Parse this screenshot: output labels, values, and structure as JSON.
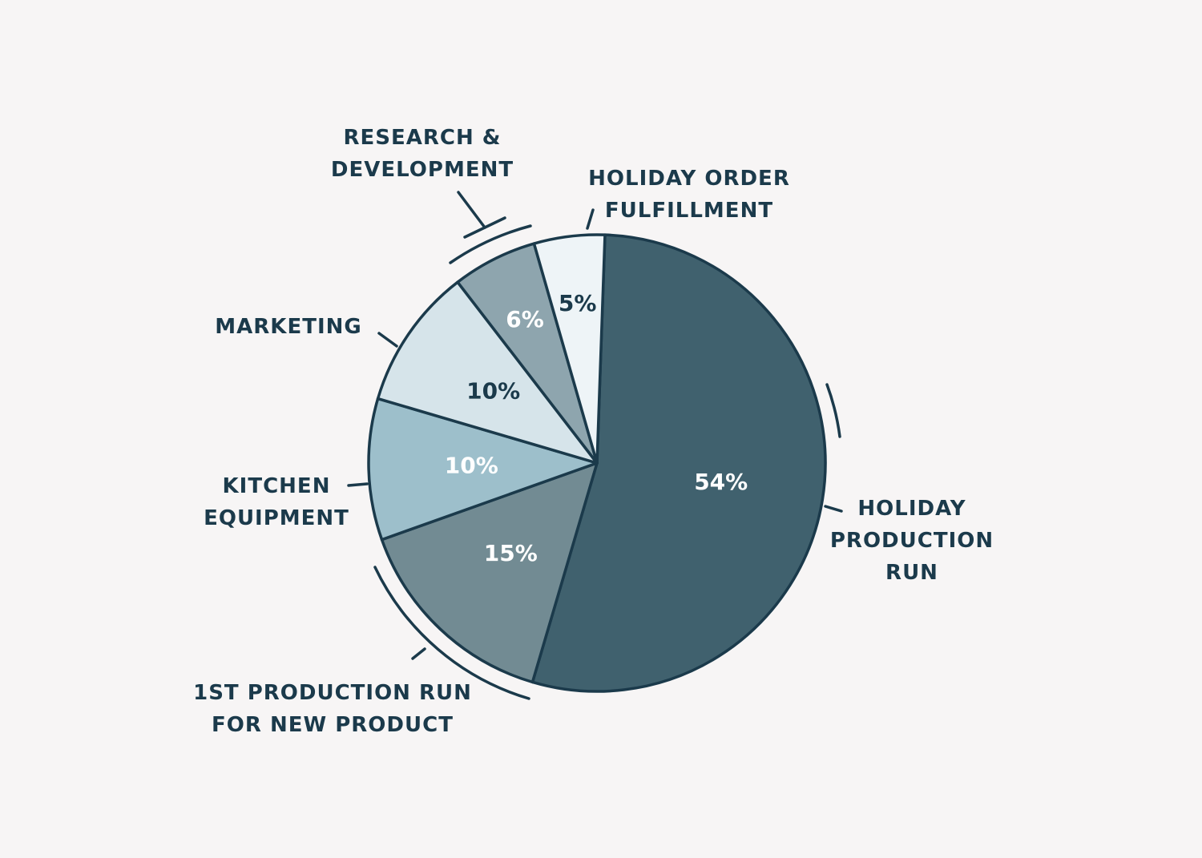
{
  "chart_data": {
    "type": "pie",
    "categories": [
      "HOLIDAY PRODUCTION RUN",
      "1ST PRODUCTION RUN FOR NEW PRODUCT",
      "KITCHEN EQUIPMENT",
      "MARKETING",
      "RESEARCH & DEVELOPMENT",
      "HOLIDAY ORDER FULFILLMENT"
    ],
    "values": [
      54,
      15,
      10,
      10,
      6,
      5
    ],
    "value_labels": [
      "54%",
      "15%",
      "10%",
      "10%",
      "6%",
      "5%"
    ],
    "colors": [
      "#40616e",
      "#728b93",
      "#9dbfcb",
      "#d6e4ea",
      "#8ea5ae",
      "#eef4f7"
    ]
  }
}
